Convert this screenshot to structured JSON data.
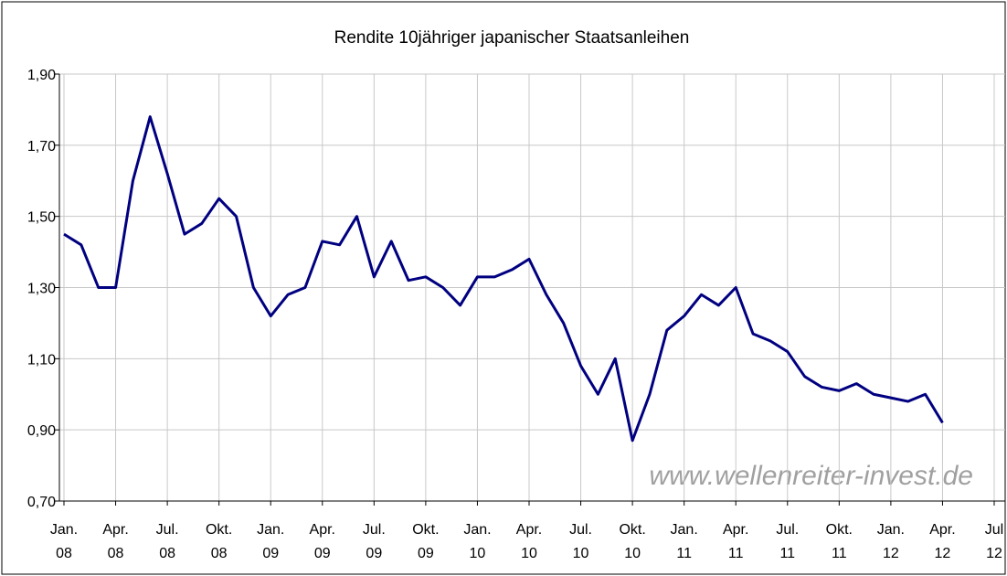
{
  "chart_data": {
    "type": "line",
    "title": "Rendite 10jähriger japanischer Staatsanleihen",
    "watermark": "www.wellenreiter-invest.de",
    "x": [
      "2008-01",
      "2008-02",
      "2008-03",
      "2008-04",
      "2008-05",
      "2008-06",
      "2008-07",
      "2008-08",
      "2008-09",
      "2008-10",
      "2008-11",
      "2008-12",
      "2009-01",
      "2009-02",
      "2009-03",
      "2009-04",
      "2009-05",
      "2009-06",
      "2009-07",
      "2009-08",
      "2009-09",
      "2009-10",
      "2009-11",
      "2009-12",
      "2010-01",
      "2010-02",
      "2010-03",
      "2010-04",
      "2010-05",
      "2010-06",
      "2010-07",
      "2010-08",
      "2010-09",
      "2010-10",
      "2010-11",
      "2010-12",
      "2011-01",
      "2011-02",
      "2011-03",
      "2011-04",
      "2011-05",
      "2011-06",
      "2011-07",
      "2011-08",
      "2011-09",
      "2011-10",
      "2011-11",
      "2011-12",
      "2012-01",
      "2012-02",
      "2012-03",
      "2012-04"
    ],
    "series": [
      {
        "name": "Rendite",
        "color": "#000080",
        "values": [
          1.45,
          1.42,
          1.3,
          1.3,
          1.6,
          1.78,
          1.62,
          1.45,
          1.48,
          1.55,
          1.5,
          1.3,
          1.22,
          1.28,
          1.3,
          1.43,
          1.42,
          1.5,
          1.33,
          1.43,
          1.32,
          1.33,
          1.3,
          1.25,
          1.33,
          1.33,
          1.35,
          1.38,
          1.28,
          1.2,
          1.08,
          1.0,
          1.1,
          0.87,
          1.0,
          1.18,
          1.22,
          1.28,
          1.25,
          1.3,
          1.17,
          1.15,
          1.12,
          1.05,
          1.02,
          1.01,
          1.03,
          1.0,
          0.99,
          0.98,
          1.0,
          0.92
        ]
      }
    ],
    "xlim": [
      "2008-01",
      "2012-07"
    ],
    "xticks": [
      {
        "value": "2008-01",
        "label": "Jan. 08"
      },
      {
        "value": "2008-04",
        "label": "Apr. 08"
      },
      {
        "value": "2008-07",
        "label": "Jul. 08"
      },
      {
        "value": "2008-10",
        "label": "Okt. 08"
      },
      {
        "value": "2009-01",
        "label": "Jan. 09"
      },
      {
        "value": "2009-04",
        "label": "Apr. 09"
      },
      {
        "value": "2009-07",
        "label": "Jul. 09"
      },
      {
        "value": "2009-10",
        "label": "Okt. 09"
      },
      {
        "value": "2010-01",
        "label": "Jan. 10"
      },
      {
        "value": "2010-04",
        "label": "Apr. 10"
      },
      {
        "value": "2010-07",
        "label": "Jul. 10"
      },
      {
        "value": "2010-10",
        "label": "Okt. 10"
      },
      {
        "value": "2011-01",
        "label": "Jan. 11"
      },
      {
        "value": "2011-04",
        "label": "Apr. 11"
      },
      {
        "value": "2011-07",
        "label": "Jul. 11"
      },
      {
        "value": "2011-10",
        "label": "Okt. 11"
      },
      {
        "value": "2012-01",
        "label": "Jan. 12"
      },
      {
        "value": "2012-04",
        "label": "Apr. 12"
      },
      {
        "value": "2012-07",
        "label": "Jul 12"
      }
    ],
    "ylim": [
      0.7,
      1.9
    ],
    "yticks": [
      {
        "value": 0.7,
        "label": "0,70"
      },
      {
        "value": 0.9,
        "label": "0,90"
      },
      {
        "value": 1.1,
        "label": "1,10"
      },
      {
        "value": 1.3,
        "label": "1,30"
      },
      {
        "value": 1.5,
        "label": "1,50"
      },
      {
        "value": 1.7,
        "label": "1,70"
      },
      {
        "value": 1.9,
        "label": "1,90"
      }
    ],
    "grid": true
  }
}
